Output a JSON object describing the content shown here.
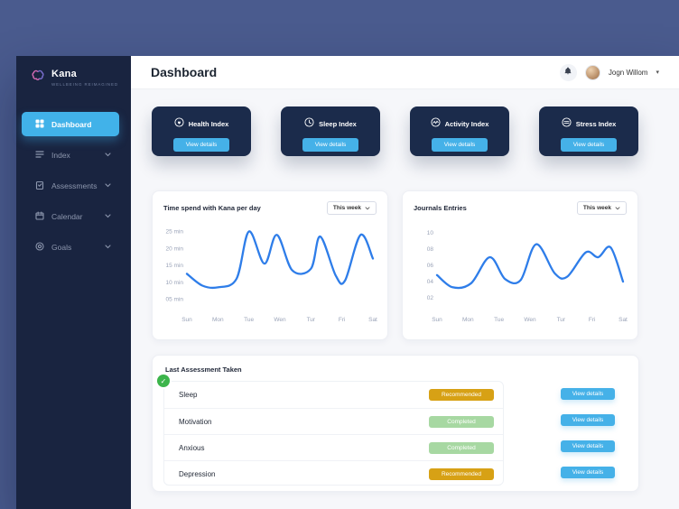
{
  "brand": {
    "name": "Kana",
    "tagline": "WELLBEING REIMAGINED"
  },
  "sidebar": {
    "items": [
      {
        "label": "Dashboard",
        "icon": "grid-icon",
        "active": true
      },
      {
        "label": "Index",
        "icon": "list-icon",
        "active": false
      },
      {
        "label": "Assessments",
        "icon": "clipboard-icon",
        "active": false
      },
      {
        "label": "Calendar",
        "icon": "calendar-icon",
        "active": false
      },
      {
        "label": "Goals",
        "icon": "target-icon",
        "active": false
      }
    ]
  },
  "header": {
    "title": "Dashboard",
    "user_name": "Jogn Willom",
    "icons": [
      "bell-icon",
      "avatar",
      "chevron-down-icon"
    ]
  },
  "stat_cards": [
    {
      "label": "Health Index",
      "icon": "health-icon",
      "button": "View details"
    },
    {
      "label": "Sleep Index",
      "icon": "sleep-icon",
      "button": "View details"
    },
    {
      "label": "Activity Index",
      "icon": "activity-icon",
      "button": "View details"
    },
    {
      "label": "Stress Index",
      "icon": "stress-icon",
      "button": "View details"
    }
  ],
  "chart_data": [
    {
      "type": "line",
      "title": "Time spend with Kana per day",
      "range_selector": "This week",
      "categories": [
        "Sun",
        "Mon",
        "Tue",
        "Wen",
        "Tur",
        "Fri",
        "Sat"
      ],
      "yticks": [
        {
          "value": 5,
          "label": "05 min"
        },
        {
          "value": 10,
          "label": "10 min"
        },
        {
          "value": 15,
          "label": "15 min"
        },
        {
          "value": 20,
          "label": "20 min"
        },
        {
          "value": 25,
          "label": "25 min"
        }
      ],
      "ylim": [
        3,
        27
      ],
      "line_color": "#2e7de9",
      "legend": "none",
      "grid": false,
      "points": [
        [
          0,
          12.5
        ],
        [
          0.5,
          9
        ],
        [
          1.0,
          8.5
        ],
        [
          1.6,
          11
        ],
        [
          2.0,
          25
        ],
        [
          2.5,
          15.5
        ],
        [
          2.9,
          24
        ],
        [
          3.4,
          13.5
        ],
        [
          4.0,
          14
        ],
        [
          4.3,
          23.5
        ],
        [
          4.8,
          12
        ],
        [
          5.1,
          10.5
        ],
        [
          5.6,
          24
        ],
        [
          6,
          17
        ]
      ]
    },
    {
      "type": "line",
      "title": "Journals Entries",
      "range_selector": "This week",
      "categories": [
        "Sun",
        "Mon",
        "Tue",
        "Wen",
        "Tur",
        "Fri",
        "Sat"
      ],
      "yticks": [
        {
          "value": 2,
          "label": "02"
        },
        {
          "value": 4,
          "label": "04"
        },
        {
          "value": 6,
          "label": "06"
        },
        {
          "value": 8,
          "label": "08"
        },
        {
          "value": 10,
          "label": "10"
        }
      ],
      "ylim": [
        1,
        11
      ],
      "line_color": "#2e7de9",
      "legend": "none",
      "grid": false,
      "points": [
        [
          0,
          4.8
        ],
        [
          0.5,
          3.3
        ],
        [
          1.1,
          3.8
        ],
        [
          1.7,
          7
        ],
        [
          2.2,
          4.3
        ],
        [
          2.7,
          4.2
        ],
        [
          3.2,
          8.6
        ],
        [
          3.8,
          5
        ],
        [
          4.2,
          4.6
        ],
        [
          4.8,
          7.6
        ],
        [
          5.2,
          7
        ],
        [
          5.6,
          8.2
        ],
        [
          6,
          4
        ]
      ]
    }
  ],
  "assessments": {
    "title": "Last Assessment Taken",
    "rows": [
      {
        "name": "Sleep",
        "status": "Recommended",
        "status_type": "recommended",
        "action": "View details"
      },
      {
        "name": "Motivation",
        "status": "Completed",
        "status_type": "completed",
        "action": "View details"
      },
      {
        "name": "Anxious",
        "status": "Completed",
        "status_type": "completed",
        "action": "View details"
      },
      {
        "name": "Depression",
        "status": "Recommended",
        "status_type": "recommended",
        "action": "View details"
      }
    ]
  },
  "colors": {
    "accent_blue": "#45b1e8",
    "dark_navy": "#1b2b4b",
    "sidebar_navy": "#192440",
    "badge_recommended": "#d7a115",
    "badge_completed": "#a7d8a2",
    "line_blue": "#2e7de9",
    "check_green": "#3cb54b",
    "page_background": "#4a5b8e"
  }
}
